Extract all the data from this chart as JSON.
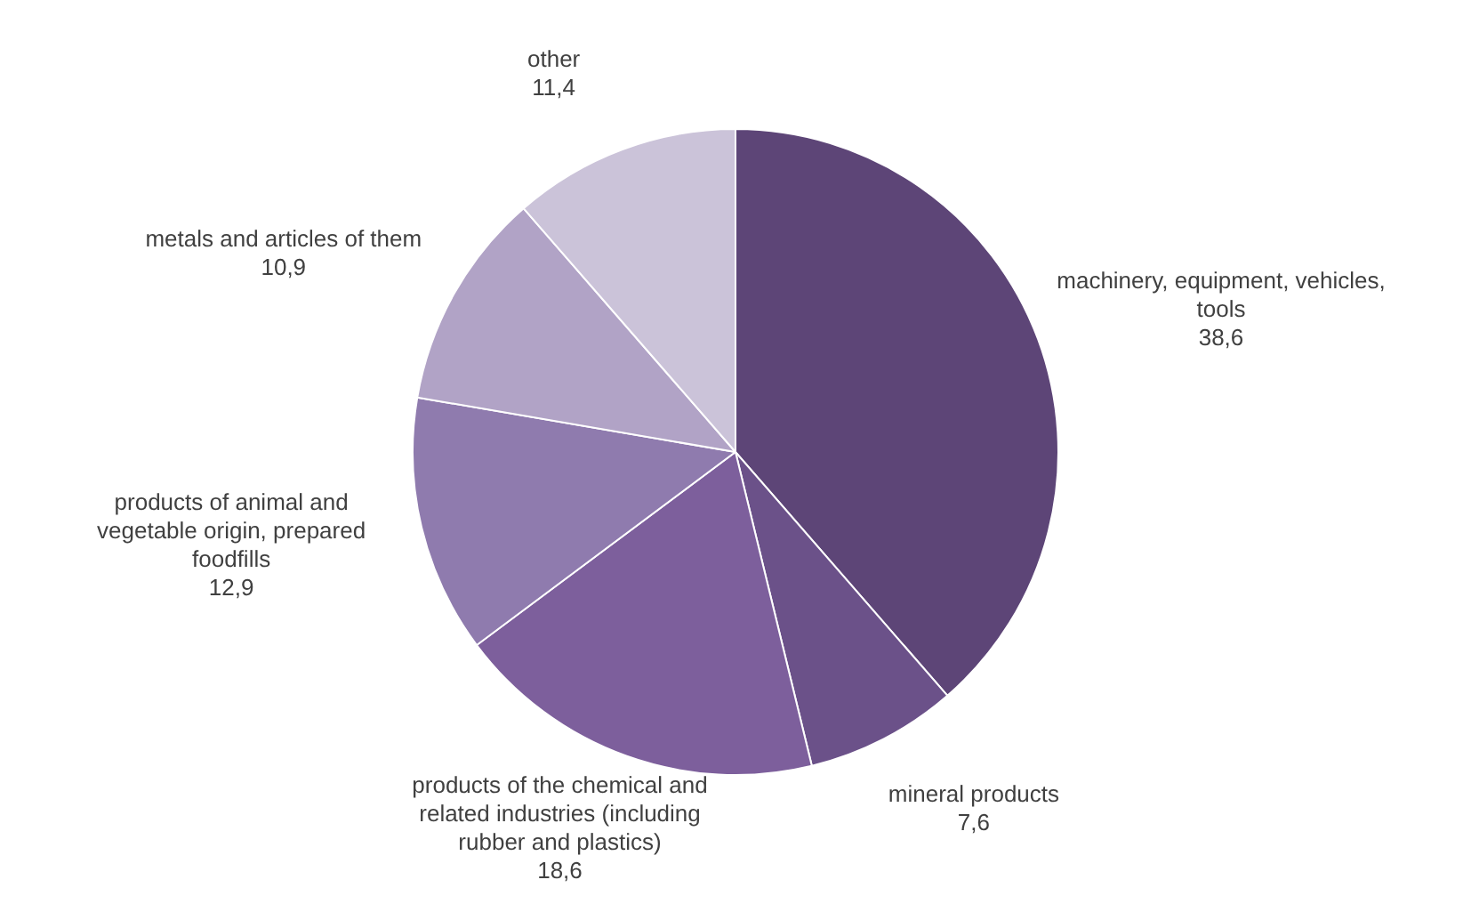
{
  "chart_data": {
    "type": "pie",
    "categories": [
      "machinery, equipment, vehicles, tools",
      "mineral products",
      "products of the chemical and related industries (including rubber and plastics)",
      "products of animal and vegetable origin, prepared foodfills",
      "metals and articles of them",
      "other"
    ],
    "values": [
      38.6,
      7.6,
      18.6,
      12.9,
      10.9,
      11.4
    ],
    "value_labels": [
      "38,6",
      "7,6",
      "18,6",
      "12,9",
      "10,9",
      "11,4"
    ],
    "colors": [
      "#5d4577",
      "#6b5189",
      "#7d5f9c",
      "#8f7bae",
      "#b1a3c6",
      "#cbc3d9"
    ],
    "legend": false
  }
}
